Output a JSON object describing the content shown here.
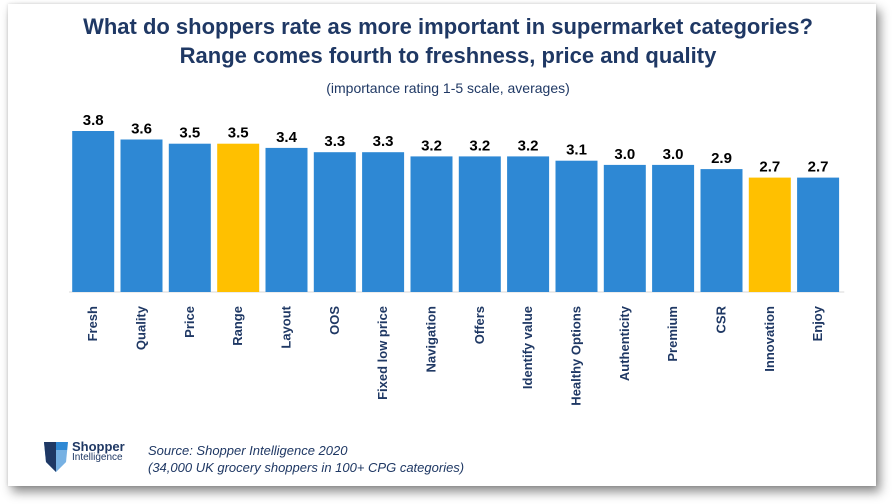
{
  "title_line1": "What do shoppers rate as more important in supermarket categories?",
  "title_line2": "Range comes fourth to freshness, price and quality",
  "subtitle": "(importance rating 1-5 scale, averages)",
  "source_line1": "Source: Shopper Intelligence 2020",
  "source_line2": "(34,000 UK grocery shoppers in 100+ CPG categories)",
  "logo": {
    "line1": "Shopper",
    "line2": "Intelligence",
    "icon": "shield-logo-icon"
  },
  "colors": {
    "bar": "#2e88d4",
    "highlight": "#ffc000",
    "text": "#1f3864"
  },
  "chart_data": {
    "type": "bar",
    "categories": [
      "Fresh",
      "Quality",
      "Price",
      "Range",
      "Layout",
      "OOS",
      "Fixed low price",
      "Navigation",
      "Offers",
      "Identify value",
      "Healthy Options",
      "Authenticity",
      "Premium",
      "CSR",
      "Innovation",
      "Enjoy"
    ],
    "values": [
      3.8,
      3.6,
      3.5,
      3.5,
      3.4,
      3.3,
      3.3,
      3.2,
      3.2,
      3.2,
      3.1,
      3.0,
      3.0,
      2.9,
      2.7,
      2.7
    ],
    "data_labels": [
      "3.8",
      "3.6",
      "3.5",
      "3.5",
      "3.4",
      "3.3",
      "3.3",
      "3.2",
      "3.2",
      "3.2",
      "3.1",
      "3.0",
      "3.0",
      "2.9",
      "2.7",
      "2.7"
    ],
    "highlighted": [
      "Range",
      "Innovation"
    ],
    "title": "",
    "xlabel": "",
    "ylabel": "",
    "grid": false,
    "legend": "none"
  }
}
